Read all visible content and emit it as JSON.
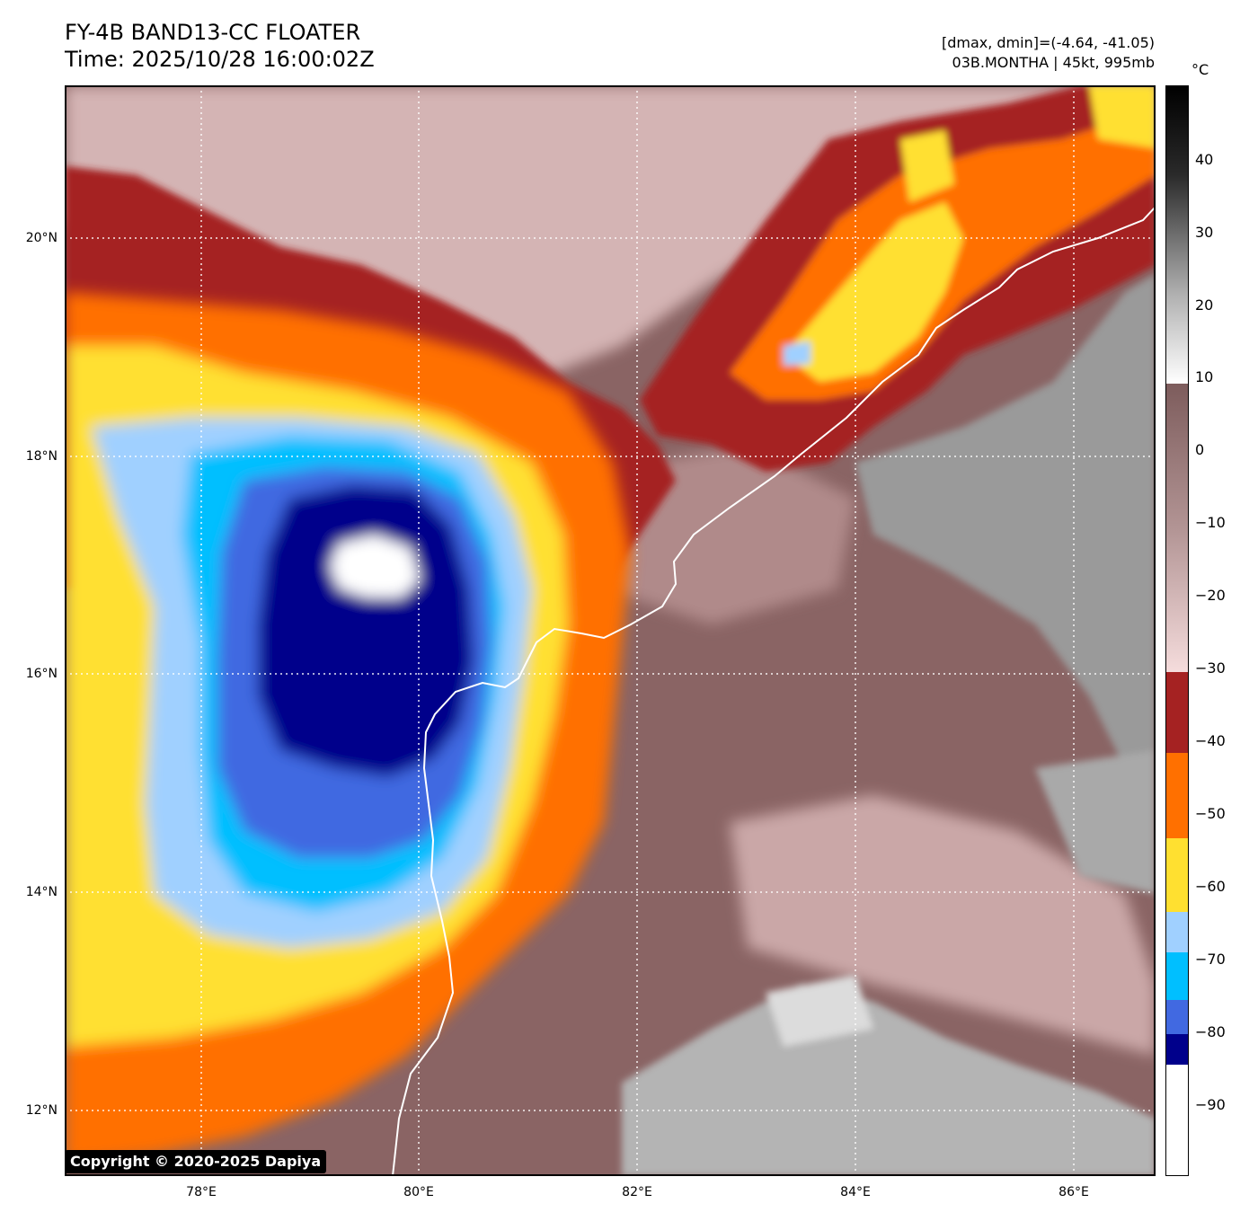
{
  "header": {
    "title_line1": "FY-4B BAND13-CC FLOATER",
    "title_line2": "Time: 2025/10/28 16:00:02Z",
    "stats": "[dmax, dmin]=(-4.64, -41.05)",
    "storm": "03B.MONTHA | 45kt, 995mb"
  },
  "colorbar": {
    "unit": "°C",
    "ticks": [
      "40",
      "30",
      "20",
      "10",
      "0",
      "−10",
      "−20",
      "−30",
      "−40",
      "−50",
      "−60",
      "−70",
      "−80",
      "−90"
    ],
    "range": [
      -100,
      50
    ]
  },
  "map": {
    "lat_labels": [
      "20°N",
      "18°N",
      "16°N",
      "14°N",
      "12°N"
    ],
    "lon_labels": [
      "78°E",
      "80°E",
      "82°E",
      "84°E",
      "86°E"
    ],
    "lat_range": [
      11.4,
      21.4
    ],
    "lon_range": [
      76.75,
      86.75
    ]
  },
  "footer": {
    "copyright": "Copyright © 2020-2025 Dapiya"
  },
  "colors": {
    "cloud_white": "#ffffff",
    "cloud_navy": "#00008b",
    "cloud_royal": "#4169e1",
    "cloud_sky": "#00bfff",
    "cloud_pale_blue": "#a0d0ff",
    "cloud_yellow": "#ffe030",
    "cloud_orange": "#ff7000",
    "cloud_brown": "#a52222",
    "cloud_top_warm": "#8a6464",
    "coastline": "#ffffff"
  }
}
